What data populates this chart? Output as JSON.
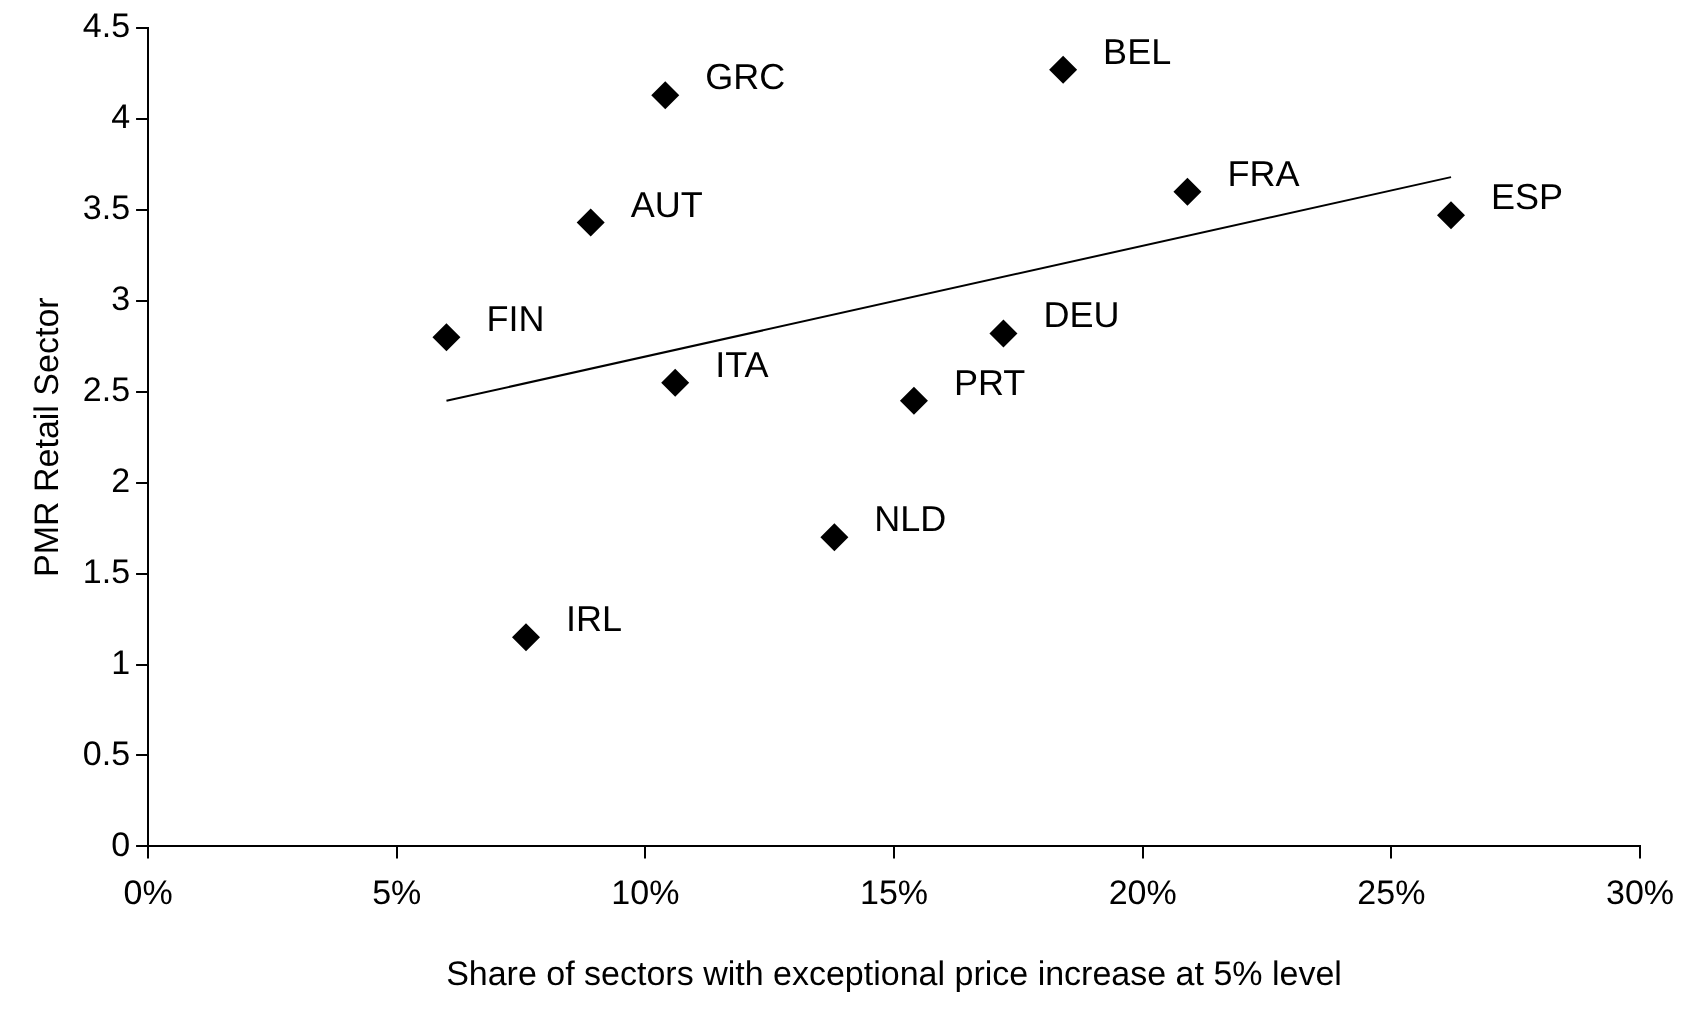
{
  "chart_data": {
    "type": "scatter",
    "xlabel": "Share of sectors with exceptional price increase at 5% level",
    "ylabel": "PMR Retail Sector",
    "x": [
      6.0,
      7.6,
      8.9,
      10.4,
      10.6,
      13.8,
      15.4,
      17.2,
      18.4,
      20.9,
      26.2
    ],
    "series": [
      {
        "color": "#000000",
        "values": [
          2.8,
          1.15,
          3.43,
          4.13,
          2.55,
          1.7,
          2.45,
          2.82,
          4.27,
          3.6,
          3.47
        ],
        "marker": "diamond"
      },
      {
        "type": "line",
        "color": "#000000",
        "x": [
          6.0,
          26.2
        ],
        "values": [
          2.45,
          3.68
        ],
        "marker": "none"
      }
    ],
    "annotations": [
      {
        "text": "FIN",
        "x": 6.0,
        "y": 2.8
      },
      {
        "text": "IRL",
        "x": 7.6,
        "y": 1.15
      },
      {
        "text": "AUT",
        "x": 8.9,
        "y": 3.43
      },
      {
        "text": "GRC",
        "x": 10.4,
        "y": 4.13
      },
      {
        "text": "ITA",
        "x": 10.6,
        "y": 2.55
      },
      {
        "text": "NLD",
        "x": 13.8,
        "y": 1.7
      },
      {
        "text": "PRT",
        "x": 15.4,
        "y": 2.45
      },
      {
        "text": "DEU",
        "x": 17.2,
        "y": 2.82
      },
      {
        "text": "BEL",
        "x": 18.4,
        "y": 4.27
      },
      {
        "text": "FRA",
        "x": 20.9,
        "y": 3.6
      },
      {
        "text": "ESP",
        "x": 26.2,
        "y": 3.47
      }
    ],
    "xlim": [
      0,
      30
    ],
    "xticks": [
      {
        "value": 0,
        "label": "0%"
      },
      {
        "value": 5,
        "label": "5%"
      },
      {
        "value": 10,
        "label": "10%"
      },
      {
        "value": 15,
        "label": "15%"
      },
      {
        "value": 20,
        "label": "20%"
      },
      {
        "value": 25,
        "label": "25%"
      },
      {
        "value": 30,
        "label": "30%"
      }
    ],
    "ylim": [
      0,
      4.5
    ],
    "yticks": [
      0,
      {
        "value": 0.5,
        "label": "0.5"
      },
      1,
      {
        "value": 1.5,
        "label": "1.5"
      },
      2,
      {
        "value": 2.5,
        "label": "2.5"
      },
      3,
      {
        "value": 3.5,
        "label": "3.5"
      },
      4,
      {
        "value": 4.5,
        "label": "4.5"
      }
    ],
    "grid": false,
    "legend": false
  }
}
